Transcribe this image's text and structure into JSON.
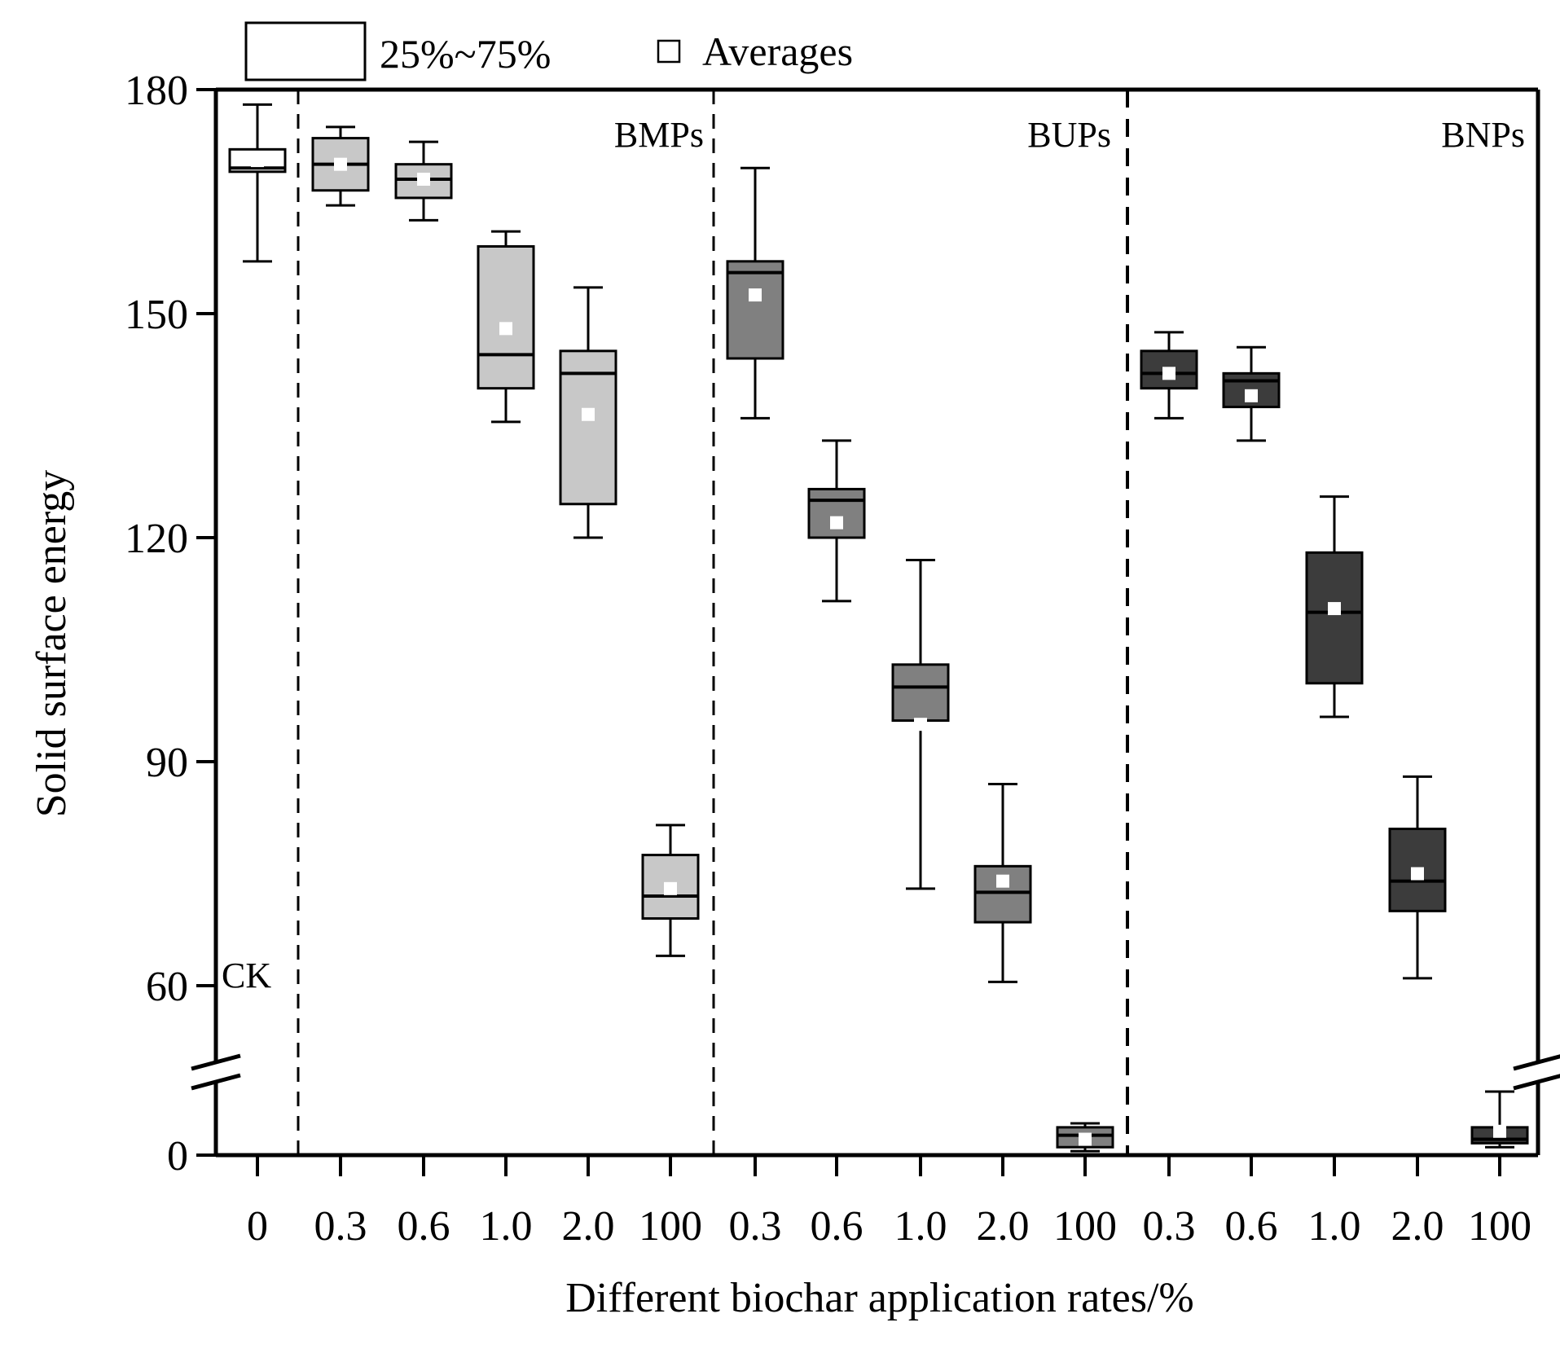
{
  "chart_data": {
    "type": "box",
    "ylabel": "Solid surface energy",
    "xlabel": "Different biochar application rates/%",
    "ylim": [
      0,
      180
    ],
    "axis_break": [
      8,
      56
    ],
    "yticks": [
      {
        "value": 0,
        "label": "0"
      },
      {
        "value": 60,
        "label": "60"
      },
      {
        "value": 90,
        "label": "90"
      },
      {
        "value": 120,
        "label": "120"
      },
      {
        "value": 150,
        "label": "150"
      },
      {
        "value": 180,
        "label": "180"
      }
    ],
    "legend": {
      "box_label": "25%~75%",
      "mean_label": "Averages"
    },
    "groups": [
      {
        "label": "CK",
        "color": "#ffffff",
        "mean_color": "#ffffff"
      },
      {
        "label": "BMPs",
        "color": "#c8c8c8",
        "mean_color": "#ffffff"
      },
      {
        "label": "BUPs",
        "color": "#808080",
        "mean_color": "#ffffff"
      },
      {
        "label": "BNPs",
        "color": "#3c3c3c",
        "mean_color": "#ffffff"
      }
    ],
    "boxes": [
      {
        "group": 0,
        "x_label": "0",
        "min": 157,
        "q1": 169,
        "median": 169.5,
        "q3": 172,
        "max": 178,
        "mean": 170.5
      },
      {
        "group": 1,
        "x_label": "0.3",
        "min": 164.5,
        "q1": 166.5,
        "median": 170,
        "q3": 173.5,
        "max": 175,
        "mean": 170
      },
      {
        "group": 1,
        "x_label": "0.6",
        "min": 162.5,
        "q1": 165.5,
        "median": 168,
        "q3": 170,
        "max": 173,
        "mean": 168
      },
      {
        "group": 1,
        "x_label": "1.0",
        "min": 135.5,
        "q1": 140,
        "median": 144.5,
        "q3": 159,
        "max": 161,
        "mean": 148
      },
      {
        "group": 1,
        "x_label": "2.0",
        "min": 120,
        "q1": 124.5,
        "median": 142,
        "q3": 145,
        "max": 153.5,
        "mean": 136.5
      },
      {
        "group": 1,
        "x_label": "100",
        "min": 64,
        "q1": 69,
        "median": 72,
        "q3": 77.5,
        "max": 81.5,
        "mean": 73
      },
      {
        "group": 2,
        "x_label": "0.3",
        "min": 136,
        "q1": 144,
        "median": 155.5,
        "q3": 157,
        "max": 169.5,
        "mean": 152.5
      },
      {
        "group": 2,
        "x_label": "0.6",
        "min": 111.5,
        "q1": 120,
        "median": 125,
        "q3": 126.5,
        "max": 133,
        "mean": 122
      },
      {
        "group": 2,
        "x_label": "1.0",
        "min": 73,
        "q1": 95.5,
        "median": 100,
        "q3": 103,
        "max": 117,
        "mean": 95
      },
      {
        "group": 2,
        "x_label": "2.0",
        "min": 60.5,
        "q1": 68.5,
        "median": 72.5,
        "q3": 76,
        "max": 87,
        "mean": 74
      },
      {
        "group": 2,
        "x_label": "100",
        "min": 0.5,
        "q1": 1,
        "median": 2.5,
        "q3": 3.5,
        "max": 4,
        "mean": 2
      },
      {
        "group": 3,
        "x_label": "0.3",
        "min": 136,
        "q1": 140,
        "median": 142,
        "q3": 145,
        "max": 147.5,
        "mean": 142
      },
      {
        "group": 3,
        "x_label": "0.6",
        "min": 133,
        "q1": 137.5,
        "median": 141,
        "q3": 142,
        "max": 145.5,
        "mean": 139
      },
      {
        "group": 3,
        "x_label": "1.0",
        "min": 96,
        "q1": 100.5,
        "median": 110,
        "q3": 118,
        "max": 125.5,
        "mean": 110.5
      },
      {
        "group": 3,
        "x_label": "2.0",
        "min": 61,
        "q1": 70,
        "median": 74,
        "q3": 81,
        "max": 88,
        "mean": 75
      },
      {
        "group": 3,
        "x_label": "100",
        "min": 1,
        "q1": 1.5,
        "median": 2,
        "q3": 3.5,
        "max": 8,
        "mean": 3
      }
    ],
    "annotations": {
      "ck": "CK"
    }
  }
}
